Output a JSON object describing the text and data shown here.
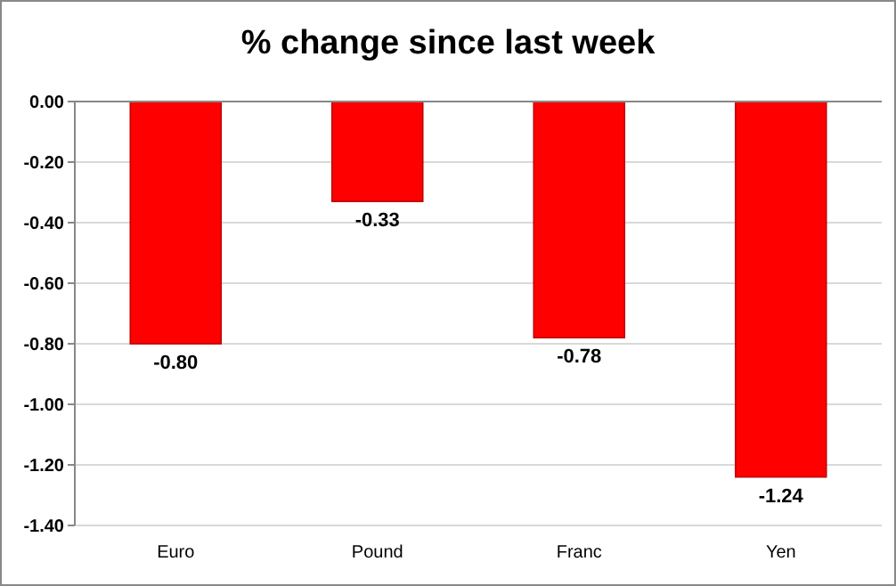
{
  "chart_data": {
    "type": "bar",
    "title": "% change since last week",
    "categories": [
      "Euro",
      "Pound",
      "Franc",
      "Yen"
    ],
    "values": [
      -0.8,
      -0.33,
      -0.78,
      -1.24
    ],
    "value_labels": [
      "-0.80",
      "-0.33",
      "-0.78",
      "-1.24"
    ],
    "color": "#ff0000",
    "ylim": [
      -1.4,
      0
    ],
    "yticks": [
      {
        "value": 0,
        "label": "0.00"
      },
      {
        "value": -0.2,
        "label": "-0.20"
      },
      {
        "value": -0.4,
        "label": "-0.40"
      },
      {
        "value": -0.6,
        "label": "-0.60"
      },
      {
        "value": -0.8,
        "label": "-0.80"
      },
      {
        "value": -1.0,
        "label": "-1.00"
      },
      {
        "value": -1.2,
        "label": "-1.20"
      },
      {
        "value": -1.4,
        "label": "-1.40"
      }
    ],
    "grid": "y"
  }
}
